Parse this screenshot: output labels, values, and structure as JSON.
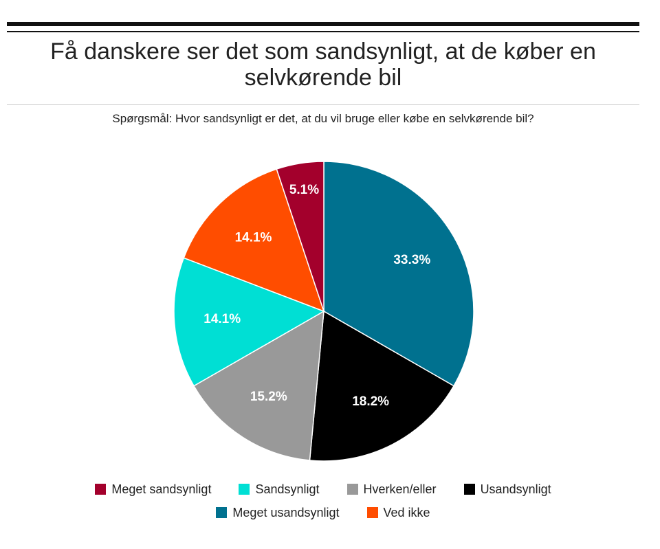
{
  "header": {
    "title_line1": "Få danskere ser det som sandsynligt, at de køber en",
    "title_line2": "selvkørende bil",
    "subtitle": "Spørgsmål: Hvor sandsynligt er det, at du vil bruge eller købe en selvkørende bil?"
  },
  "chart_data": {
    "type": "pie",
    "title": "Få danskere ser det som sandsynligt, at de køber en selvkørende bil",
    "subtitle": "Spørgsmål: Hvor sandsynligt er det, at du vil bruge eller købe en selvkørende bil?",
    "slice_order": "clockwise-from-top",
    "slices": [
      {
        "label": "Meget usandsynligt",
        "value": 33.3,
        "text": "33.3%",
        "color": "#00718f"
      },
      {
        "label": "Usandsynligt",
        "value": 18.2,
        "text": "18.2%",
        "color": "#000000"
      },
      {
        "label": "Hverken/eller",
        "value": 15.2,
        "text": "15.2%",
        "color": "#999999"
      },
      {
        "label": "Sandsynligt",
        "value": 14.1,
        "text": "14.1%",
        "color": "#00dfd4"
      },
      {
        "label": "Ved ikke",
        "value": 14.1,
        "text": "14.1%",
        "color": "#ff4d00"
      },
      {
        "label": "Meget sandsynligt",
        "value": 5.1,
        "text": "5.1%",
        "color": "#a3002c"
      }
    ],
    "legend": {
      "position": "bottom",
      "rows": [
        [
          {
            "label": "Meget sandsynligt",
            "color": "#a3002c"
          },
          {
            "label": "Sandsynligt",
            "color": "#00dfd4"
          },
          {
            "label": "Hverken/eller",
            "color": "#999999"
          },
          {
            "label": "Usandsynligt",
            "color": "#000000"
          }
        ],
        [
          {
            "label": "Meget usandsynligt",
            "color": "#00718f"
          },
          {
            "label": "Ved ikke",
            "color": "#ff4d00"
          }
        ]
      ]
    }
  }
}
